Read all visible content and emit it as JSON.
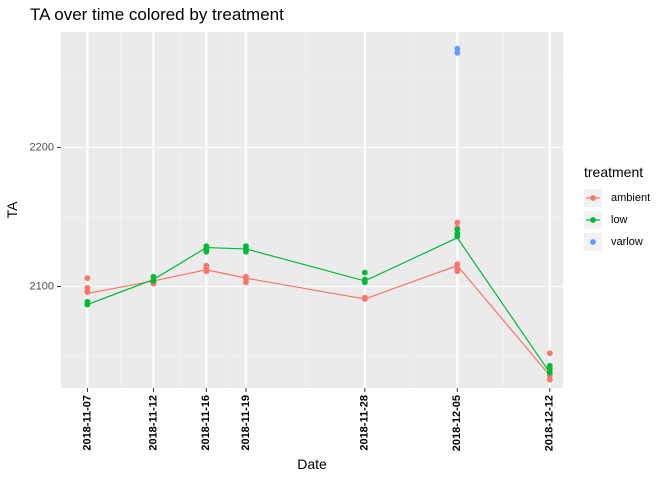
{
  "chart_data": {
    "type": "line",
    "title": "TA over time colored by treatment",
    "xlabel": "Date",
    "ylabel": "TA",
    "x_ticks": [
      "2018-11-07",
      "2018-11-12",
      "2018-11-16",
      "2018-11-19",
      "2018-11-28",
      "2018-12-05",
      "2018-12-12"
    ],
    "y_ticks": [
      2100,
      2200
    ],
    "ylim": [
      2027,
      2283
    ],
    "xlim": [
      "2018-11-05",
      "2018-12-13"
    ],
    "grid": true,
    "legend": {
      "title": "treatment",
      "position": "right"
    },
    "series": [
      {
        "name": "ambient",
        "color": "#F8766D",
        "line": [
          {
            "x": "2018-11-07",
            "y": 2095
          },
          {
            "x": "2018-11-12",
            "y": 2104
          },
          {
            "x": "2018-11-16",
            "y": 2112
          },
          {
            "x": "2018-11-19",
            "y": 2106
          },
          {
            "x": "2018-11-28",
            "y": 2091
          },
          {
            "x": "2018-12-05",
            "y": 2115
          },
          {
            "x": "2018-12-12",
            "y": 2036
          }
        ],
        "points": [
          {
            "x": "2018-11-07",
            "y": 2106
          },
          {
            "x": "2018-11-07",
            "y": 2099
          },
          {
            "x": "2018-11-07",
            "y": 2097
          },
          {
            "x": "2018-11-07",
            "y": 2096
          },
          {
            "x": "2018-11-12",
            "y": 2105
          },
          {
            "x": "2018-11-12",
            "y": 2103
          },
          {
            "x": "2018-11-12",
            "y": 2102
          },
          {
            "x": "2018-11-16",
            "y": 2115
          },
          {
            "x": "2018-11-16",
            "y": 2113
          },
          {
            "x": "2018-11-16",
            "y": 2111
          },
          {
            "x": "2018-11-19",
            "y": 2107
          },
          {
            "x": "2018-11-19",
            "y": 2105
          },
          {
            "x": "2018-11-19",
            "y": 2103
          },
          {
            "x": "2018-11-28",
            "y": 2092
          },
          {
            "x": "2018-11-28",
            "y": 2091
          },
          {
            "x": "2018-12-05",
            "y": 2146
          },
          {
            "x": "2018-12-05",
            "y": 2142
          },
          {
            "x": "2018-12-05",
            "y": 2116
          },
          {
            "x": "2018-12-05",
            "y": 2113
          },
          {
            "x": "2018-12-05",
            "y": 2111
          },
          {
            "x": "2018-12-12",
            "y": 2052
          },
          {
            "x": "2018-12-12",
            "y": 2040
          },
          {
            "x": "2018-12-12",
            "y": 2036
          },
          {
            "x": "2018-12-12",
            "y": 2033
          }
        ]
      },
      {
        "name": "low",
        "color": "#00BA38",
        "line": [
          {
            "x": "2018-11-07",
            "y": 2087
          },
          {
            "x": "2018-11-12",
            "y": 2105
          },
          {
            "x": "2018-11-16",
            "y": 2128
          },
          {
            "x": "2018-11-19",
            "y": 2127
          },
          {
            "x": "2018-11-28",
            "y": 2104
          },
          {
            "x": "2018-12-05",
            "y": 2135
          },
          {
            "x": "2018-12-12",
            "y": 2038
          }
        ],
        "points": [
          {
            "x": "2018-11-07",
            "y": 2089
          },
          {
            "x": "2018-11-07",
            "y": 2087
          },
          {
            "x": "2018-11-12",
            "y": 2107
          },
          {
            "x": "2018-11-12",
            "y": 2104
          },
          {
            "x": "2018-11-16",
            "y": 2129
          },
          {
            "x": "2018-11-16",
            "y": 2127
          },
          {
            "x": "2018-11-16",
            "y": 2125
          },
          {
            "x": "2018-11-19",
            "y": 2129
          },
          {
            "x": "2018-11-19",
            "y": 2127
          },
          {
            "x": "2018-11-19",
            "y": 2125
          },
          {
            "x": "2018-11-28",
            "y": 2110
          },
          {
            "x": "2018-11-28",
            "y": 2105
          },
          {
            "x": "2018-11-28",
            "y": 2103
          },
          {
            "x": "2018-12-05",
            "y": 2141
          },
          {
            "x": "2018-12-05",
            "y": 2138
          },
          {
            "x": "2018-12-05",
            "y": 2136
          },
          {
            "x": "2018-12-12",
            "y": 2043
          },
          {
            "x": "2018-12-12",
            "y": 2041
          },
          {
            "x": "2018-12-12",
            "y": 2038
          }
        ]
      },
      {
        "name": "varlow",
        "color": "#619CFF",
        "line": [],
        "points": [
          {
            "x": "2018-12-05",
            "y": 2271
          },
          {
            "x": "2018-12-05",
            "y": 2268
          }
        ]
      }
    ]
  }
}
